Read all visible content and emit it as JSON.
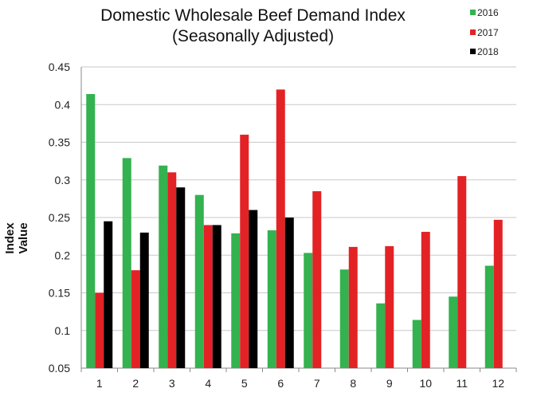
{
  "chart_data": {
    "type": "bar",
    "title": [
      "Domestic Wholesale Beef Demand Index",
      "(Seasonally Adjusted)"
    ],
    "xlabel": "",
    "ylabel": "Index Value",
    "ylim": [
      0.05,
      0.45
    ],
    "yticks": [
      "0.05",
      "0.1",
      "0.15",
      "0.2",
      "0.25",
      "0.3",
      "0.35",
      "0.4",
      "0.45"
    ],
    "ytick_values": [
      0.05,
      0.1,
      0.15,
      0.2,
      0.25,
      0.3,
      0.35,
      0.4,
      0.45
    ],
    "categories": [
      "1",
      "2",
      "3",
      "4",
      "5",
      "6",
      "7",
      "8",
      "9",
      "10",
      "11",
      "12"
    ],
    "grid": true,
    "legend_position": "top-right",
    "series": [
      {
        "name": "2016",
        "color": "#33b24f",
        "values": [
          0.414,
          0.329,
          0.319,
          0.28,
          0.229,
          0.233,
          0.203,
          0.181,
          0.136,
          0.114,
          0.145,
          0.186
        ]
      },
      {
        "name": "2017",
        "color": "#e32226",
        "values": [
          0.15,
          0.18,
          0.31,
          0.24,
          0.36,
          0.42,
          0.285,
          0.211,
          0.212,
          0.231,
          0.305,
          0.247
        ]
      },
      {
        "name": "2018",
        "color": "#000000",
        "values": [
          0.245,
          0.23,
          0.29,
          0.24,
          0.26,
          0.25,
          null,
          null,
          null,
          null,
          null,
          null
        ]
      }
    ]
  }
}
